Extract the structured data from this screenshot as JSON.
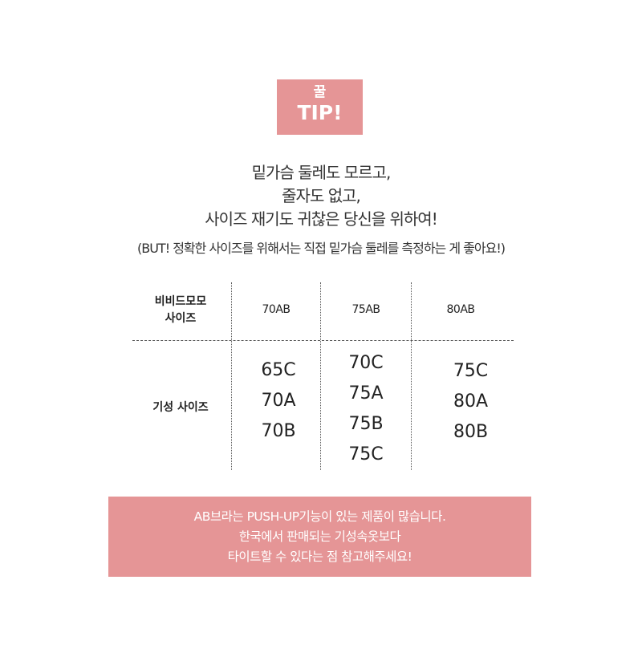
{
  "badge": {
    "line1": "꿀",
    "line2": "TIP!"
  },
  "intro": [
    "밑가슴 둘레도 모르고,",
    "줄자도 없고,",
    "사이즈 재기도 귀찮은 당신을 위하여!"
  ],
  "note": "(BUT! 정확한 사이즈를 위해서는 직접 밑가슴 둘레를 측정하는 게 좋아요!)",
  "table": {
    "row1_label": [
      "비비드모모",
      "사이즈"
    ],
    "columns": [
      "70AB",
      "75AB",
      "80AB"
    ],
    "row2_label": "기성 사이즈",
    "sizes": [
      [
        "65C",
        "70A",
        "70B"
      ],
      [
        "70C",
        "75A",
        "75B",
        "75C"
      ],
      [
        "75C",
        "80A",
        "80B"
      ]
    ]
  },
  "notice": [
    "AB브라는 PUSH-UP기능이 있는 제품이 많습니다.",
    "한국에서 판매되는 기성속옷보다",
    "타이트할 수 있다는 점 참고해주세요!"
  ],
  "colors": {
    "accent": "#e59596"
  }
}
